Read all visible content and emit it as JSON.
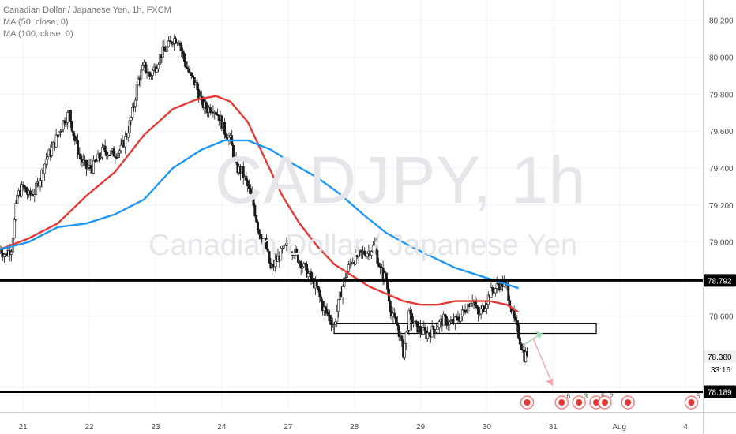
{
  "header": {
    "instrument": "Canadian Dollar / Japanese Yen, 1h, FXCM",
    "indicator_1": "MA (50, close, 0)",
    "indicator_2": "MA (100, close, 0)"
  },
  "watermark": {
    "symbol": "CADJPY, 1h",
    "name": "Canadian Dollar / Japanese Yen"
  },
  "countdown": "33:16",
  "chart_data": {
    "type": "candlestick",
    "x_axis": {
      "labels": [
        "21",
        "22",
        "23",
        "24",
        "27",
        "28",
        "29",
        "30",
        "31",
        "Aug",
        "4"
      ],
      "index": [
        8,
        31,
        54,
        77,
        100,
        123,
        146,
        169,
        192,
        215,
        238
      ]
    },
    "y_axis": {
      "range": [
        78.08,
        80.31
      ],
      "ticks": [
        80.2,
        80.0,
        79.8,
        79.6,
        79.4,
        79.2,
        79.0,
        78.6
      ]
    },
    "price_labels": [
      {
        "value": 78.792,
        "label": "78.792",
        "color": "#000000"
      },
      {
        "value": 78.38,
        "label": "78.380",
        "color": "#f0f0f0"
      },
      {
        "value": 78.189,
        "label": "78.189",
        "color": "#000000"
      }
    ],
    "horizontal_lines": [
      78.792,
      78.189
    ],
    "zone": {
      "from_index": 116,
      "to_index": 207,
      "top": 78.56,
      "bottom": 78.505
    },
    "close_path": [
      [
        0,
        78.96
      ],
      [
        2,
        78.93
      ],
      [
        4,
        78.97
      ],
      [
        6,
        79.25
      ],
      [
        8,
        79.3
      ],
      [
        10,
        79.25
      ],
      [
        12,
        79.27
      ],
      [
        14,
        79.35
      ],
      [
        16,
        79.45
      ],
      [
        18,
        79.5
      ],
      [
        20,
        79.58
      ],
      [
        22,
        79.65
      ],
      [
        24,
        79.7
      ],
      [
        26,
        79.55
      ],
      [
        28,
        79.45
      ],
      [
        30,
        79.4
      ],
      [
        32,
        79.4
      ],
      [
        34,
        79.45
      ],
      [
        36,
        79.5
      ],
      [
        38,
        79.48
      ],
      [
        40,
        79.48
      ],
      [
        42,
        79.5
      ],
      [
        44,
        79.58
      ],
      [
        46,
        79.7
      ],
      [
        48,
        79.88
      ],
      [
        50,
        79.95
      ],
      [
        52,
        79.9
      ],
      [
        54,
        79.95
      ],
      [
        56,
        80.02
      ],
      [
        58,
        80.05
      ],
      [
        60,
        80.1
      ],
      [
        62,
        80.1
      ],
      [
        64,
        79.98
      ],
      [
        66,
        79.9
      ],
      [
        68,
        79.85
      ],
      [
        70,
        79.75
      ],
      [
        72,
        79.72
      ],
      [
        74,
        79.73
      ],
      [
        76,
        79.68
      ],
      [
        78,
        79.6
      ],
      [
        80,
        79.55
      ],
      [
        82,
        79.4
      ],
      [
        84,
        79.38
      ],
      [
        86,
        79.3
      ],
      [
        88,
        79.2
      ],
      [
        90,
        79.05
      ],
      [
        92,
        79.0
      ],
      [
        94,
        78.85
      ],
      [
        96,
        78.9
      ],
      [
        98,
        78.95
      ],
      [
        100,
        78.98
      ],
      [
        102,
        78.95
      ],
      [
        104,
        78.9
      ],
      [
        106,
        78.85
      ],
      [
        108,
        78.8
      ],
      [
        110,
        78.75
      ],
      [
        112,
        78.65
      ],
      [
        114,
        78.6
      ],
      [
        116,
        78.55
      ],
      [
        118,
        78.7
      ],
      [
        120,
        78.82
      ],
      [
        122,
        78.9
      ],
      [
        124,
        78.92
      ],
      [
        126,
        78.94
      ],
      [
        128,
        78.95
      ],
      [
        130,
        78.98
      ],
      [
        132,
        78.85
      ],
      [
        134,
        78.8
      ],
      [
        136,
        78.6
      ],
      [
        138,
        78.55
      ],
      [
        140,
        78.4
      ],
      [
        142,
        78.6
      ],
      [
        144,
        78.55
      ],
      [
        146,
        78.52
      ],
      [
        148,
        78.5
      ],
      [
        150,
        78.52
      ],
      [
        152,
        78.55
      ],
      [
        154,
        78.58
      ],
      [
        156,
        78.56
      ],
      [
        158,
        78.57
      ],
      [
        160,
        78.6
      ],
      [
        162,
        78.65
      ],
      [
        164,
        78.7
      ],
      [
        166,
        78.6
      ],
      [
        168,
        78.65
      ],
      [
        170,
        78.72
      ],
      [
        172,
        78.75
      ],
      [
        174,
        78.78
      ],
      [
        176,
        78.75
      ],
      [
        178,
        78.6
      ],
      [
        180,
        78.5
      ],
      [
        182,
        78.38
      ],
      [
        183,
        78.4
      ]
    ],
    "series": [
      {
        "name": "MA (50, close, 0)",
        "color": "#e53935",
        "points": [
          [
            0,
            78.96
          ],
          [
            10,
            79.02
          ],
          [
            20,
            79.1
          ],
          [
            30,
            79.25
          ],
          [
            40,
            79.38
          ],
          [
            50,
            79.58
          ],
          [
            60,
            79.72
          ],
          [
            68,
            79.77
          ],
          [
            75,
            79.79
          ],
          [
            80,
            79.76
          ],
          [
            86,
            79.65
          ],
          [
            92,
            79.45
          ],
          [
            98,
            79.25
          ],
          [
            104,
            79.1
          ],
          [
            110,
            78.98
          ],
          [
            116,
            78.88
          ],
          [
            122,
            78.82
          ],
          [
            128,
            78.76
          ],
          [
            134,
            78.72
          ],
          [
            140,
            78.68
          ],
          [
            146,
            78.66
          ],
          [
            152,
            78.66
          ],
          [
            158,
            78.68
          ],
          [
            164,
            78.68
          ],
          [
            170,
            78.68
          ],
          [
            176,
            78.66
          ],
          [
            180,
            78.62
          ]
        ]
      },
      {
        "name": "MA (100, close, 0)",
        "color": "#2196f3",
        "points": [
          [
            0,
            78.96
          ],
          [
            10,
            79.0
          ],
          [
            20,
            79.08
          ],
          [
            30,
            79.1
          ],
          [
            40,
            79.15
          ],
          [
            50,
            79.23
          ],
          [
            60,
            79.4
          ],
          [
            70,
            79.5
          ],
          [
            78,
            79.55
          ],
          [
            86,
            79.55
          ],
          [
            94,
            79.5
          ],
          [
            102,
            79.42
          ],
          [
            110,
            79.35
          ],
          [
            118,
            79.26
          ],
          [
            126,
            79.15
          ],
          [
            134,
            79.05
          ],
          [
            142,
            78.98
          ],
          [
            150,
            78.92
          ],
          [
            158,
            78.86
          ],
          [
            166,
            78.82
          ],
          [
            172,
            78.79
          ],
          [
            180,
            78.75
          ]
        ]
      }
    ],
    "markers": [
      {
        "index": 183,
        "kind": "flag"
      },
      {
        "index": 195,
        "kind": "event",
        "count": "6"
      },
      {
        "index": 201,
        "kind": "event",
        "count": "3"
      },
      {
        "index": 207,
        "kind": "event",
        "count": "5"
      },
      {
        "index": 210,
        "kind": "event",
        "count": "2"
      },
      {
        "index": 218,
        "kind": "event",
        "count": ""
      },
      {
        "index": 240,
        "kind": "event",
        "count": "5"
      }
    ]
  }
}
